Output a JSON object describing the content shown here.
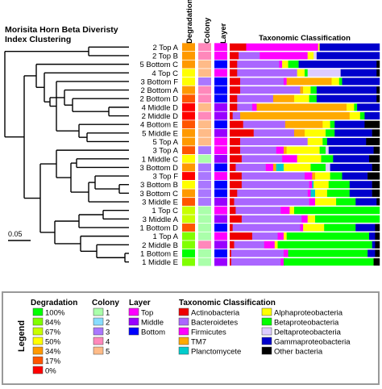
{
  "chart_data": {
    "type": "heatmap",
    "title": "Morisita Horn Beta Diveristy Index Clustering",
    "title_lines": [
      "Morisita Horn Beta Diveristy",
      "Index Clustering"
    ],
    "scale_bar_label": "0.05",
    "column_headers": {
      "degradation": "Degradation",
      "colony": "Colony",
      "layer": "Layer",
      "taxonomy": "Taxonomic Classification"
    },
    "samples": [
      "2 Top A",
      "2 Top B",
      "5 Bottom C",
      "4 Top C",
      "3 Bottom F",
      "2 Bottom A",
      "2 Bottom D",
      "4 Middle D",
      "2 Middle D",
      "4 Bottom E",
      "5 Middle E",
      "5 Top A",
      "3 Top A",
      "1 Middle C",
      "3 Bottom D",
      "3 Top F",
      "3 Bottom B",
      "3 Bottom C",
      "3 Middle E",
      "1 Top C",
      "3 Middle A",
      "1 Bottom D",
      "1 Top A",
      "2 Middle B",
      "1 Bottom E",
      "1 Middle E"
    ],
    "degradation": [
      "34%",
      "34%",
      "34%",
      "50%",
      "50%",
      "34%",
      "17%",
      "0%",
      "0%",
      "17%",
      "34%",
      "34%",
      "17%",
      "50%",
      "34%",
      "0%",
      "50%",
      "34%",
      "17%",
      "67%",
      "67%",
      "17%",
      "84%",
      "84%",
      "100%",
      "84%"
    ],
    "colony": [
      "4",
      "4",
      "5",
      "5",
      "3",
      "4",
      "4",
      "5",
      "4",
      "5",
      "5",
      "5",
      "3",
      "1",
      "3",
      "3",
      "3",
      "3",
      "3",
      "1",
      "1",
      "1",
      "1",
      "4",
      "1",
      "1"
    ],
    "layer": [
      "Top",
      "Top",
      "Bottom",
      "Top",
      "Bottom",
      "Bottom",
      "Bottom",
      "Middle",
      "Middle",
      "Bottom",
      "Middle",
      "Top",
      "Top",
      "Middle",
      "Bottom",
      "Top",
      "Bottom",
      "Bottom",
      "Middle",
      "Top",
      "Middle",
      "Bottom",
      "Top",
      "Middle",
      "Bottom",
      "Middle"
    ],
    "taxonomy_order": [
      "Actinobacteria",
      "Bacteroidetes",
      "Firmicutes",
      "TM7",
      "Planctomycete",
      "Alphaproteobacteria",
      "Betaproteobacteria",
      "Deltaproteobacteria",
      "Gammaproteobacteria",
      "Other bacteria"
    ],
    "taxonomy_fractions": [
      [
        0.11,
        0.0,
        0.48,
        0.0,
        0.0,
        0.01,
        0.0,
        0.0,
        0.4,
        0.0
      ],
      [
        0.06,
        0.14,
        0.32,
        0.0,
        0.0,
        0.04,
        0.0,
        0.02,
        0.42,
        0.0
      ],
      [
        0.05,
        0.28,
        0.02,
        0.0,
        0.0,
        0.04,
        0.07,
        0.0,
        0.52,
        0.02
      ],
      [
        0.05,
        0.4,
        0.0,
        0.0,
        0.0,
        0.05,
        0.02,
        0.22,
        0.24,
        0.02
      ],
      [
        0.07,
        0.29,
        0.02,
        0.3,
        0.0,
        0.05,
        0.02,
        0.0,
        0.25,
        0.0
      ],
      [
        0.07,
        0.4,
        0.0,
        0.02,
        0.0,
        0.05,
        0.04,
        0.0,
        0.4,
        0.02
      ],
      [
        0.05,
        0.24,
        0.0,
        0.14,
        0.0,
        0.1,
        0.05,
        0.0,
        0.4,
        0.02
      ],
      [
        0.05,
        0.1,
        0.03,
        0.6,
        0.0,
        0.05,
        0.02,
        0.0,
        0.15,
        0.0
      ],
      [
        0.02,
        0.05,
        0.0,
        0.73,
        0.0,
        0.07,
        0.03,
        0.0,
        0.1,
        0.0
      ],
      [
        0.09,
        0.28,
        0.0,
        0.25,
        0.0,
        0.05,
        0.03,
        0.0,
        0.2,
        0.1
      ],
      [
        0.16,
        0.27,
        0.0,
        0.07,
        0.0,
        0.14,
        0.06,
        0.0,
        0.25,
        0.05
      ],
      [
        0.07,
        0.45,
        0.0,
        0.0,
        0.0,
        0.1,
        0.03,
        0.0,
        0.26,
        0.09
      ],
      [
        0.07,
        0.24,
        0.05,
        0.02,
        0.0,
        0.22,
        0.04,
        0.02,
        0.3,
        0.04
      ],
      [
        0.08,
        0.27,
        0.1,
        0.0,
        0.0,
        0.16,
        0.08,
        0.0,
        0.24,
        0.07
      ],
      [
        0.04,
        0.2,
        0.05,
        0.02,
        0.05,
        0.18,
        0.1,
        0.03,
        0.28,
        0.05
      ],
      [
        0.08,
        0.42,
        0.05,
        0.02,
        0.0,
        0.1,
        0.08,
        0.0,
        0.17,
        0.08
      ],
      [
        0.08,
        0.45,
        0.02,
        0.0,
        0.01,
        0.1,
        0.14,
        0.0,
        0.15,
        0.05
      ],
      [
        0.05,
        0.47,
        0.02,
        0.0,
        0.03,
        0.08,
        0.15,
        0.0,
        0.15,
        0.05
      ],
      [
        0.03,
        0.5,
        0.04,
        0.0,
        0.0,
        0.14,
        0.13,
        0.0,
        0.14,
        0.02
      ],
      [
        0.04,
        0.3,
        0.06,
        0.0,
        0.0,
        0.03,
        0.57,
        0.0,
        0.0,
        0.0
      ],
      [
        0.08,
        0.4,
        0.04,
        0.0,
        0.0,
        0.05,
        0.43,
        0.0,
        0.0,
        0.0
      ],
      [
        0.02,
        0.45,
        0.02,
        0.0,
        0.0,
        0.14,
        0.21,
        0.0,
        0.13,
        0.03
      ],
      [
        0.15,
        0.17,
        0.04,
        0.0,
        0.0,
        0.02,
        0.55,
        0.0,
        0.04,
        0.03
      ],
      [
        0.03,
        0.2,
        0.07,
        0.0,
        0.0,
        0.02,
        0.63,
        0.0,
        0.02,
        0.03
      ],
      [
        0.01,
        0.35,
        0.03,
        0.0,
        0.0,
        0.0,
        0.53,
        0.0,
        0.05,
        0.03
      ],
      [
        0.01,
        0.33,
        0.02,
        0.0,
        0.0,
        0.0,
        0.6,
        0.0,
        0.0,
        0.04
      ]
    ]
  },
  "legend": {
    "title": "Legend",
    "degradation_title": "Degradation",
    "degradation_items": [
      "100%",
      "84%",
      "67%",
      "50%",
      "34%",
      "17%",
      "0%"
    ],
    "colony_title": "Colony",
    "colony_items": [
      "1",
      "2",
      "3",
      "4",
      "5"
    ],
    "layer_title": "Layer",
    "layer_items": [
      "Top",
      "Middle",
      "Bottom"
    ],
    "taxonomy_title": "Taxonomic Classification",
    "taxonomy_items": [
      "Actinobacteria",
      "Bacteroidetes",
      "Firmicutes",
      "TM7",
      "Planctomycete",
      "Alphaproteobacteria",
      "Betaproteobacteria",
      "Deltaproteobacteria",
      "Gammaproteobacteria",
      "Other bacteria"
    ]
  },
  "colors": {
    "degradation": {
      "100%": "#00ff00",
      "84%": "#80ff00",
      "67%": "#c8ff00",
      "50%": "#ffff00",
      "34%": "#ff9900",
      "17%": "#ff5500",
      "0%": "#ff0000"
    },
    "colony": {
      "1": "#aaffaa",
      "2": "#88ddff",
      "3": "#aa77ff",
      "4": "#ff88bb",
      "5": "#ffbb88"
    },
    "layer": {
      "Top": "#ff00ff",
      "Middle": "#9900ff",
      "Bottom": "#0000ff"
    },
    "taxonomy": [
      "#ee0000",
      "#aa66ff",
      "#ff00ff",
      "#ffaa00",
      "#00cccc",
      "#ffff00",
      "#00ff00",
      "#ddccff",
      "#0000cc",
      "#000000"
    ]
  }
}
